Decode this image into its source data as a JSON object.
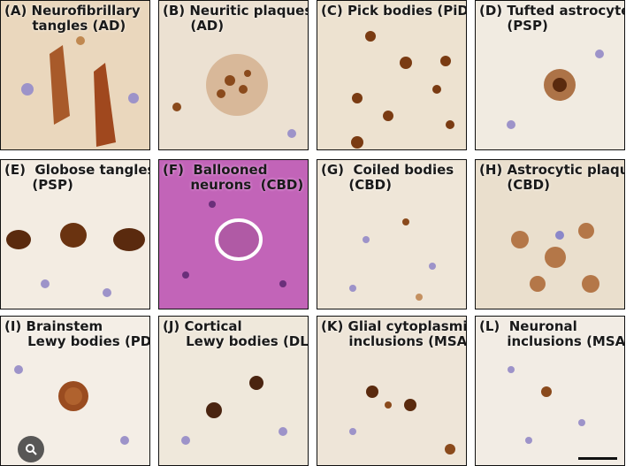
{
  "panels": [
    {
      "id": "A",
      "label": "(A) Neurofibrillary\n      tangles (AD)"
    },
    {
      "id": "B",
      "label": "(B) Neuritic plaques\n      (AD)"
    },
    {
      "id": "C",
      "label": "(C) Pick bodies (PiD)"
    },
    {
      "id": "D",
      "label": "(D) Tufted astrocytes\n      (PSP)"
    },
    {
      "id": "E",
      "label": "(E)  Globose tangles\n      (PSP)"
    },
    {
      "id": "F",
      "label": "(F)  Ballooned\n      neurons  (CBD)"
    },
    {
      "id": "G",
      "label": "(G)  Coiled bodies\n      (CBD)"
    },
    {
      "id": "H",
      "label": "(H) Astrocytic plaques\n      (CBD)"
    },
    {
      "id": "I",
      "label": "(I) Brainstem\n     Lewy bodies (PD)"
    },
    {
      "id": "J",
      "label": "(J) Cortical\n     Lewy bodies (DLB)"
    },
    {
      "id": "K",
      "label": "(K) Glial cytoplasmic\n      inclusions (MSA)"
    },
    {
      "id": "L",
      "label": "(L)  Neuronal\n      inclusions (MSA)"
    }
  ],
  "colors": {
    "background": "#f2ece3",
    "stain_brown": "#8a4a1c",
    "stain_dark": "#4a2410",
    "nucleus_blue": "#8b87c9",
    "he_pink": "#c264b8"
  },
  "icons": {
    "overlay_button": "lens-icon"
  }
}
